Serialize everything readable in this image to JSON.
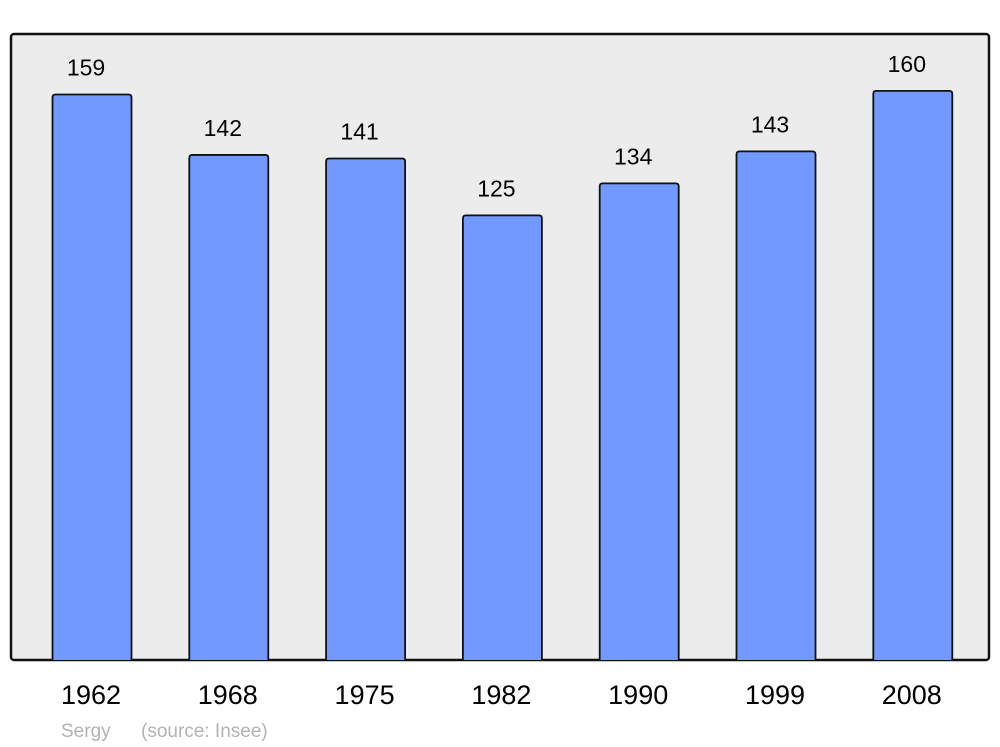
{
  "chart_data": {
    "type": "bar",
    "categories": [
      "1962",
      "1968",
      "1975",
      "1982",
      "1990",
      "1999",
      "2008"
    ],
    "values": [
      159,
      142,
      141,
      125,
      134,
      143,
      160
    ],
    "data_labels": [
      "159",
      "142",
      "141",
      "125",
      "134",
      "143",
      "160"
    ],
    "ylim": [
      0,
      176
    ],
    "grid": false,
    "title": "",
    "xlabel": "",
    "ylabel": "",
    "colors": {
      "bar": "#7299ff",
      "background": "#ececec",
      "frame": "#111111"
    }
  },
  "footer": {
    "place": "Sergy",
    "source": "(source: Insee)"
  }
}
